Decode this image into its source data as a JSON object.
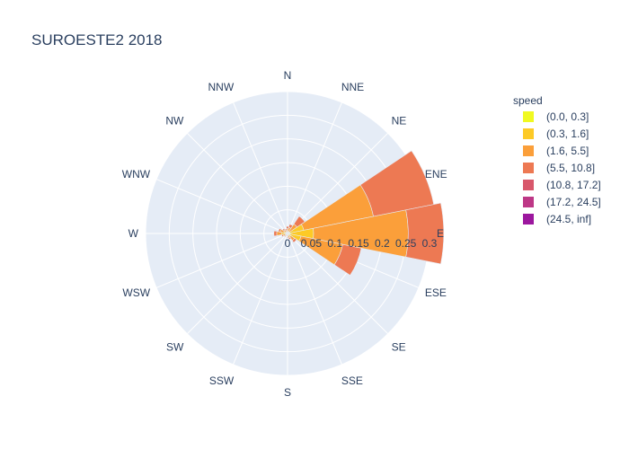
{
  "chart_data": {
    "type": "barpolar",
    "title": "SUROESTE2 2018",
    "directions": [
      "N",
      "NNE",
      "NE",
      "ENE",
      "E",
      "ESE",
      "SE",
      "SSE",
      "S",
      "SSW",
      "SW",
      "WSW",
      "W",
      "WNW",
      "NW",
      "NNW"
    ],
    "radial_range": [
      0,
      0.3
    ],
    "radial_ticks": [
      0,
      0.05,
      0.1,
      0.15,
      0.2,
      0.25,
      0.3
    ],
    "radial_tick_labels": [
      "0",
      "0.05",
      "0.1",
      "0.15",
      "0.2",
      "0.25",
      "0.3"
    ],
    "legend_title": "speed",
    "legend_position": "right",
    "series": [
      {
        "name": "(0.0, 0.3]",
        "color": "#f0f921",
        "values": [
          0,
          0,
          0,
          0.005,
          0.005,
          0.004,
          0,
          0,
          0,
          0,
          0,
          0,
          0.003,
          0.002,
          0,
          0
        ]
      },
      {
        "name": "(0.3, 1.6]",
        "color": "#fdca26",
        "values": [
          0.003,
          0.003,
          0.004,
          0.03,
          0.05,
          0.025,
          0.008,
          0.004,
          0.003,
          0.002,
          0.003,
          0.004,
          0.01,
          0.006,
          0.004,
          0.002
        ]
      },
      {
        "name": "(1.6, 5.5]",
        "color": "#fb9f3a",
        "values": [
          0.007,
          0.01,
          0.02,
          0.15,
          0.2,
          0.09,
          0.01,
          0.006,
          0.004,
          0.003,
          0.004,
          0.006,
          0.01,
          0.008,
          0.006,
          0.005
        ]
      },
      {
        "name": "(5.5, 10.8]",
        "color": "#ed7953",
        "values": [
          0.005,
          0.007,
          0.02,
          0.13,
          0.075,
          0.04,
          0.005,
          0.003,
          0.002,
          0.001,
          0.002,
          0.003,
          0.006,
          0.004,
          0.003,
          0.003
        ]
      },
      {
        "name": "(10.8, 17.2]",
        "color": "#d8576b",
        "values": [
          0,
          0,
          0,
          0,
          0,
          0,
          0,
          0,
          0,
          0,
          0,
          0,
          0,
          0,
          0,
          0
        ]
      },
      {
        "name": "(17.2, 24.5]",
        "color": "#bd3786",
        "values": [
          0,
          0,
          0,
          0,
          0,
          0,
          0,
          0,
          0,
          0,
          0,
          0,
          0,
          0,
          0,
          0
        ]
      },
      {
        "name": "(24.5, inf]",
        "color": "#9c179e",
        "values": [
          0,
          0,
          0,
          0,
          0,
          0,
          0,
          0,
          0,
          0,
          0,
          0,
          0,
          0,
          0,
          0
        ]
      }
    ],
    "polar_bg_color": "#e5ecf6",
    "grid_color": "#ffffff"
  }
}
